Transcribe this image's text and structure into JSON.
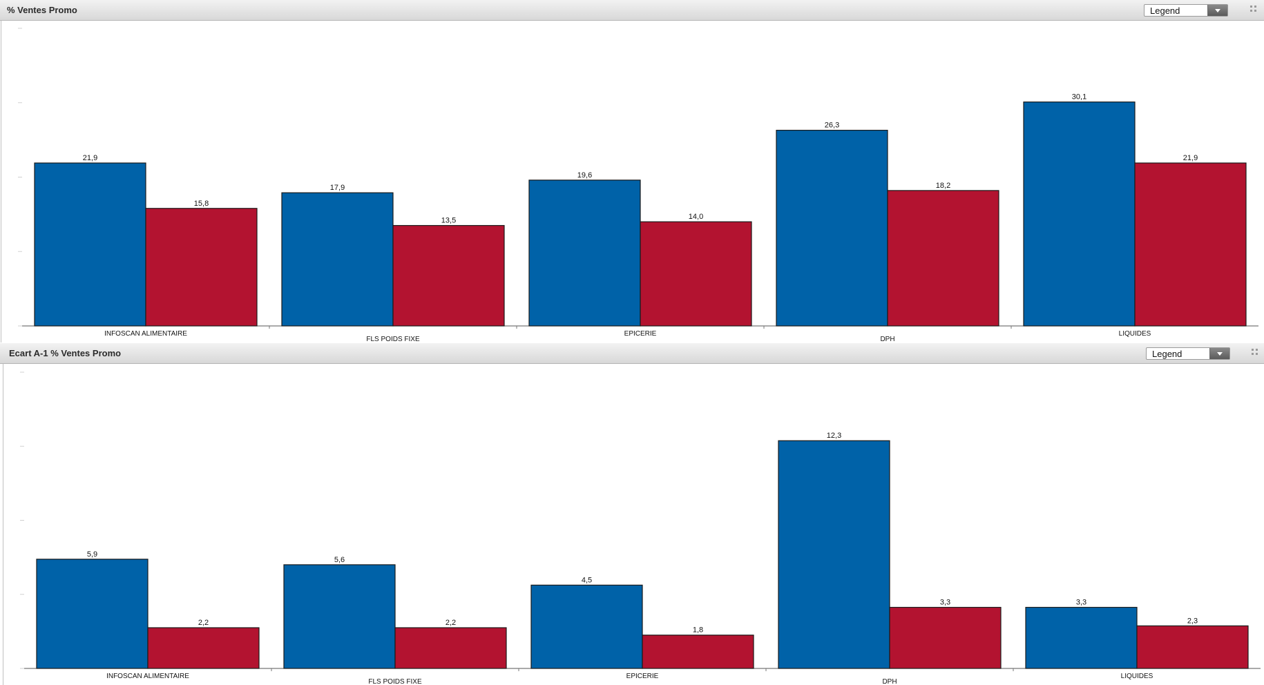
{
  "panels": [
    {
      "title": "% Ventes Promo",
      "legend_label": "Legend"
    },
    {
      "title": "Ecart A-1 % Ventes Promo",
      "legend_label": "Legend"
    }
  ],
  "colors": {
    "series_1": "#0062a8",
    "series_2": "#b31330"
  },
  "chart_data": [
    {
      "type": "bar",
      "title": "% Ventes Promo",
      "categories": [
        "INFOSCAN ALIMENTAIRE",
        "FLS POIDS FIXE",
        "EPICERIE",
        "DPH",
        "LIQUIDES"
      ],
      "series": [
        {
          "values": [
            21.9,
            17.9,
            19.6,
            26.3,
            30.1
          ],
          "labels": [
            "21,9",
            "17,9",
            "19,6",
            "26,3",
            "30,1"
          ]
        },
        {
          "values": [
            15.8,
            13.5,
            14.0,
            18.2,
            21.9
          ],
          "labels": [
            "15,8",
            "13,5",
            "14,0",
            "18,2",
            "21,9"
          ]
        }
      ],
      "ylim": [
        0,
        40
      ],
      "grid": false
    },
    {
      "type": "bar",
      "title": "Ecart A-1 % Ventes Promo",
      "categories": [
        "INFOSCAN ALIMENTAIRE",
        "FLS POIDS FIXE",
        "EPICERIE",
        "DPH",
        "LIQUIDES"
      ],
      "series": [
        {
          "values": [
            5.9,
            5.6,
            4.5,
            12.3,
            3.3
          ],
          "labels": [
            "5,9",
            "5,6",
            "4,5",
            "12,3",
            "3,3"
          ]
        },
        {
          "values": [
            2.2,
            2.2,
            1.8,
            3.3,
            2.3
          ],
          "labels": [
            "2,2",
            "2,2",
            "1,8",
            "3,3",
            "2,3"
          ]
        }
      ],
      "ylim": [
        0,
        16
      ],
      "grid": false
    }
  ]
}
